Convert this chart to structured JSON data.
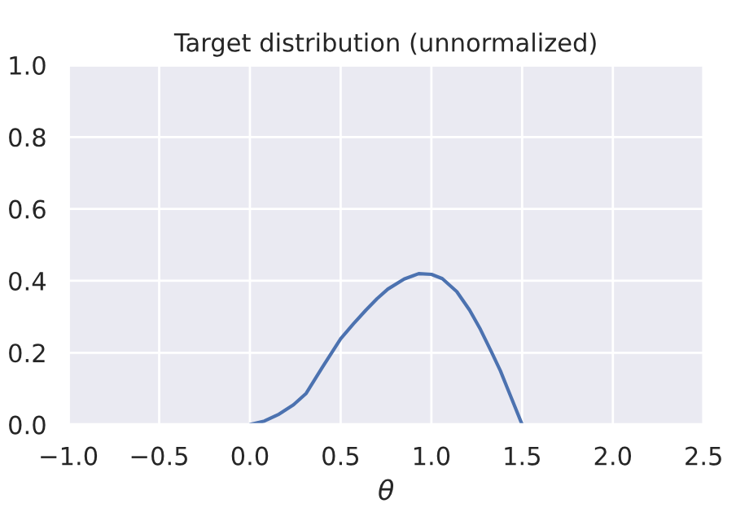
{
  "chart_data": {
    "type": "line",
    "title": "Target distribution (unnormalized)",
    "xlabel": "θ",
    "series": [
      {
        "color": "#4c72b0",
        "x": [
          0.0,
          0.08,
          0.16,
          0.24,
          0.31,
          0.4,
          0.5,
          0.57,
          0.64,
          0.7,
          0.76,
          0.85,
          0.93,
          1.0,
          1.06,
          1.14,
          1.21,
          1.27,
          1.33,
          1.38,
          1.42,
          1.46,
          1.5
        ],
        "values": [
          0.0,
          0.01,
          0.029,
          0.055,
          0.087,
          0.16,
          0.239,
          0.28,
          0.319,
          0.35,
          0.377,
          0.405,
          0.42,
          0.418,
          0.406,
          0.37,
          0.319,
          0.265,
          0.203,
          0.15,
          0.1,
          0.05,
          0.0
        ]
      }
    ],
    "xlim": [
      -1.0,
      2.5
    ],
    "xticks": [
      {
        "value": -1,
        "label": "−1.0"
      },
      {
        "value": -0.5,
        "label": "−0.5"
      },
      {
        "value": 0,
        "label": "0.0"
      },
      0.5,
      {
        "value": 1,
        "label": "1.0"
      },
      1.5,
      {
        "value": 2,
        "label": "2.0"
      },
      2.5
    ],
    "ylim": [
      0.0,
      1.0
    ],
    "yticks": [
      {
        "value": 0,
        "label": "0.0"
      },
      0.2,
      0.4,
      0.6,
      0.8,
      {
        "value": 1,
        "label": "1.0"
      }
    ],
    "grid": true
  }
}
